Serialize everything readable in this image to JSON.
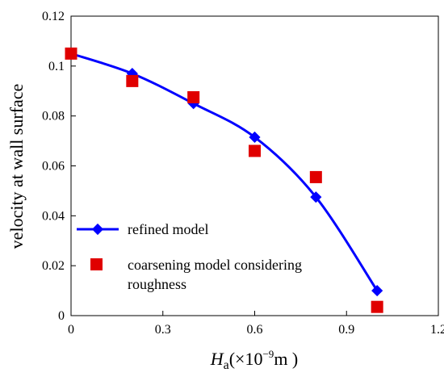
{
  "chart_data": {
    "type": "scatter",
    "xlabel": {
      "symbol": "H",
      "subscript": "a",
      "unit": "(×10",
      "exponent": "−9",
      "unit_end": "m )"
    },
    "ylabel": "velocity at wall surface",
    "xlim": [
      0,
      1.2
    ],
    "ylim": [
      0,
      0.12
    ],
    "x_ticks": [
      "0",
      "0.3",
      "0.6",
      "0.9",
      "1.2"
    ],
    "y_ticks": [
      "0",
      "0.02",
      "0.04",
      "0.06",
      "0.08",
      "0.1",
      "0.12"
    ],
    "grid": false,
    "legend_position": "bottom-left",
    "series": [
      {
        "name": "refined model",
        "style": "line-with-diamond-markers",
        "color": "#0000ff",
        "x": [
          0,
          0.2,
          0.4,
          0.6,
          0.8,
          1.0
        ],
        "y": [
          0.105,
          0.097,
          0.085,
          0.0715,
          0.0475,
          0.01
        ]
      },
      {
        "name": "coarsening model considering roughness",
        "style": "square-markers",
        "color": "#e00000",
        "x": [
          0,
          0.2,
          0.4,
          0.6,
          0.8,
          1.0
        ],
        "y": [
          0.105,
          0.094,
          0.0875,
          0.066,
          0.0555,
          0.0035
        ]
      }
    ]
  },
  "legend": {
    "refined_label": "refined model",
    "coarse_label_line1": "coarsening model considering",
    "coarse_label_line2": "roughness"
  }
}
